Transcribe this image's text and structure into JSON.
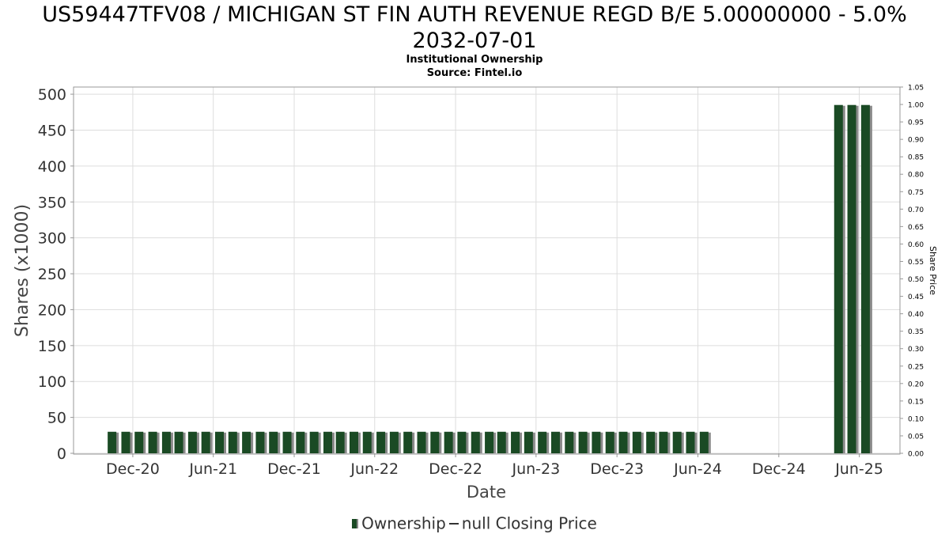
{
  "header": {
    "title_line1": "US59447TFV08 / MICHIGAN ST FIN AUTH REVENUE REGD B/E 5.00000000 - 5.0%",
    "title_line2": "2032-07-01",
    "subtitle": "Institutional Ownership",
    "source": "Source: Fintel.io"
  },
  "legend": {
    "ownership": "Ownership",
    "price": "null Closing Price"
  },
  "colors": {
    "bar": "#1a4a24",
    "bar_shadow": "#8a8a8a",
    "grid": "#dddddd"
  },
  "chart_data": {
    "type": "bar",
    "title": "US59447TFV08 / MICHIGAN ST FIN AUTH REVENUE REGD B/E 5.00000000 - 5.0% 2032-07-01",
    "subtitle": "Institutional Ownership",
    "xlabel": "Date",
    "ylabel": "Shares (x1000)",
    "y2label": "Share Price",
    "x_range": [
      "2020-07-20",
      "2025-09-01"
    ],
    "ylim": [
      0,
      510
    ],
    "y2lim": [
      0,
      1.05
    ],
    "y_ticks": [
      0,
      50,
      100,
      150,
      200,
      250,
      300,
      350,
      400,
      450,
      500
    ],
    "y2_ticks": [
      "0.00",
      "0.05",
      "0.10",
      "0.15",
      "0.20",
      "0.25",
      "0.30",
      "0.35",
      "0.40",
      "0.45",
      "0.50",
      "0.55",
      "0.60",
      "0.65",
      "0.70",
      "0.75",
      "0.80",
      "0.85",
      "0.90",
      "0.95",
      "1.00",
      "1.05"
    ],
    "x_ticks": [
      {
        "date": "2020-12-01",
        "label": "Dec-20"
      },
      {
        "date": "2021-06-01",
        "label": "Jun-21"
      },
      {
        "date": "2021-12-01",
        "label": "Dec-21"
      },
      {
        "date": "2022-06-01",
        "label": "Jun-22"
      },
      {
        "date": "2022-12-01",
        "label": "Dec-22"
      },
      {
        "date": "2023-06-01",
        "label": "Jun-23"
      },
      {
        "date": "2023-12-01",
        "label": "Dec-23"
      },
      {
        "date": "2024-06-01",
        "label": "Jun-24"
      },
      {
        "date": "2024-12-01",
        "label": "Dec-24"
      },
      {
        "date": "2025-06-01",
        "label": "Jun-25"
      }
    ],
    "grid": true,
    "legend_position": "bottom",
    "series": [
      {
        "name": "Ownership",
        "x": [
          "2020-10-15",
          "2020-11-15",
          "2020-12-15",
          "2021-01-15",
          "2021-02-15",
          "2021-03-15",
          "2021-04-15",
          "2021-05-15",
          "2021-06-15",
          "2021-07-15",
          "2021-08-15",
          "2021-09-15",
          "2021-10-15",
          "2021-11-15",
          "2021-12-15",
          "2022-01-15",
          "2022-02-15",
          "2022-03-15",
          "2022-04-15",
          "2022-05-15",
          "2022-06-15",
          "2022-07-15",
          "2022-08-15",
          "2022-09-15",
          "2022-10-15",
          "2022-11-15",
          "2022-12-15",
          "2023-01-15",
          "2023-02-15",
          "2023-03-15",
          "2023-04-15",
          "2023-05-15",
          "2023-06-15",
          "2023-07-15",
          "2023-08-15",
          "2023-09-15",
          "2023-10-15",
          "2023-11-15",
          "2023-12-15",
          "2024-01-15",
          "2024-02-15",
          "2024-03-15",
          "2024-04-15",
          "2024-05-15",
          "2024-06-15",
          "2025-04-15",
          "2025-05-15",
          "2025-06-15"
        ],
        "values": [
          30,
          30,
          30,
          30,
          30,
          30,
          30,
          30,
          30,
          30,
          30,
          30,
          30,
          30,
          30,
          30,
          30,
          30,
          30,
          30,
          30,
          30,
          30,
          30,
          30,
          30,
          30,
          30,
          30,
          30,
          30,
          30,
          30,
          30,
          30,
          30,
          30,
          30,
          30,
          30,
          30,
          30,
          30,
          30,
          30,
          485,
          485,
          485
        ]
      },
      {
        "name": "null Closing Price",
        "x": [],
        "values": []
      }
    ]
  }
}
